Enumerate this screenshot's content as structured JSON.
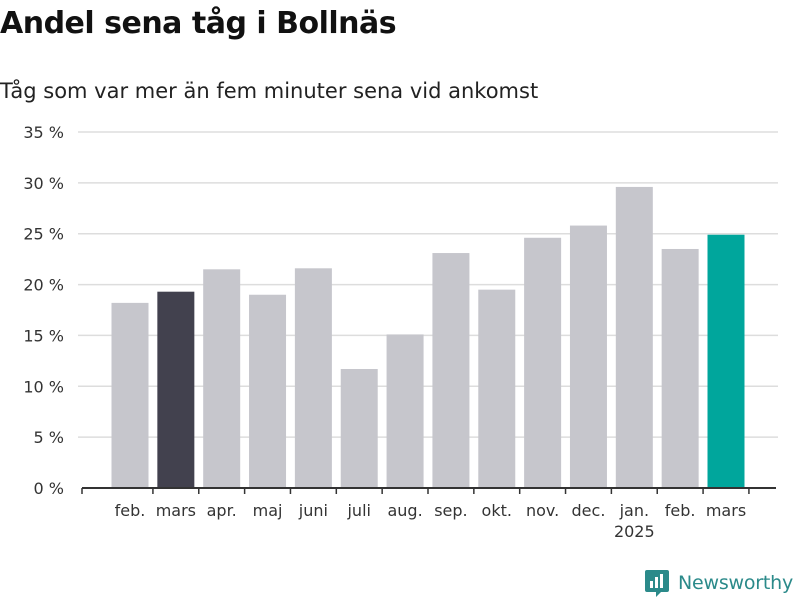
{
  "chart_data": {
    "type": "bar",
    "title": "Andel sena tåg i Bollnäs",
    "subtitle": "Tåg som var mer än fem minuter sena vid ankomst",
    "categories": [
      "feb.",
      "mars",
      "apr.",
      "maj",
      "juni",
      "juli",
      "aug.",
      "sep.",
      "okt.",
      "nov.",
      "dec.",
      "jan.",
      "feb.",
      "mars"
    ],
    "category_year_labels": [
      "",
      "",
      "",
      "",
      "",
      "",
      "",
      "",
      "",
      "",
      "",
      "2025",
      "",
      ""
    ],
    "values": [
      18.2,
      19.3,
      21.5,
      19.0,
      21.6,
      11.7,
      15.1,
      23.1,
      19.5,
      24.6,
      25.8,
      29.6,
      23.5,
      24.9
    ],
    "bar_colors": [
      "#c6c6cc",
      "#42414e",
      "#c6c6cc",
      "#c6c6cc",
      "#c6c6cc",
      "#c6c6cc",
      "#c6c6cc",
      "#c6c6cc",
      "#c6c6cc",
      "#c6c6cc",
      "#c6c6cc",
      "#c6c6cc",
      "#c6c6cc",
      "#00a69c"
    ],
    "yticks": [
      0,
      5,
      10,
      15,
      20,
      25,
      30,
      35
    ],
    "ytick_labels": [
      "0 %",
      "5 %",
      "10 %",
      "15 %",
      "20 %",
      "25 %",
      "30 %",
      "35 %"
    ],
    "ylim": [
      0,
      35
    ],
    "grid": true,
    "xlabel": "",
    "ylabel": ""
  },
  "branding": {
    "name": "Newsworthy",
    "icon": "newsworthy-logo-icon",
    "color": "#2b8a8a"
  }
}
